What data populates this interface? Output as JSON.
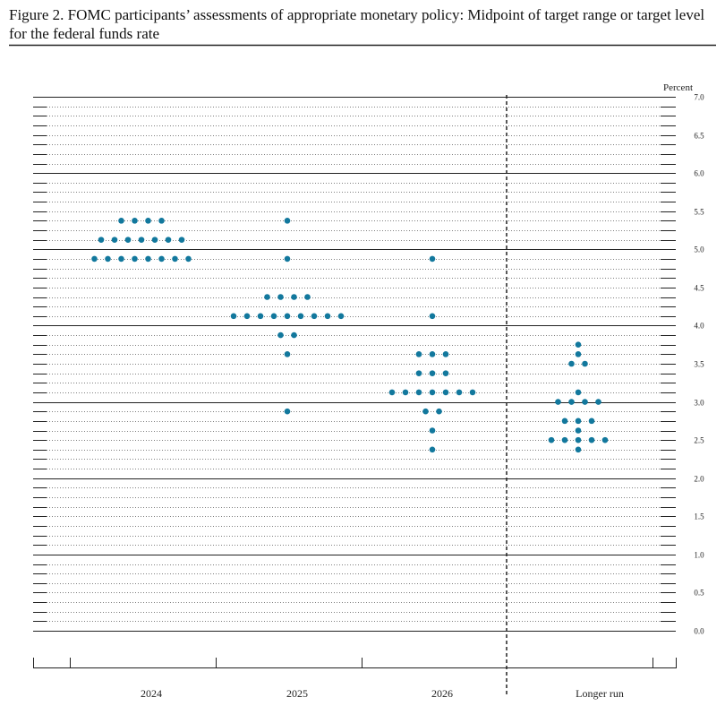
{
  "chart_data": {
    "type": "dot",
    "title": "Figure 2.  FOMC participants’ assessments of appropriate monetary policy: Midpoint of target range or target level for the federal funds rate",
    "y_label": "Percent",
    "color": "#12789d",
    "categories": [
      "2024",
      "2025",
      "2026",
      "Longer run"
    ],
    "dots": [
      [
        {
          "rate": 5.375,
          "count": 4
        },
        {
          "rate": 5.125,
          "count": 7
        },
        {
          "rate": 4.875,
          "count": 8
        }
      ],
      [
        {
          "rate": 5.375,
          "count": 1
        },
        {
          "rate": 4.875,
          "count": 1
        },
        {
          "rate": 4.375,
          "count": 4
        },
        {
          "rate": 4.125,
          "count": 9
        },
        {
          "rate": 3.875,
          "count": 2
        },
        {
          "rate": 3.625,
          "count": 1
        },
        {
          "rate": 2.875,
          "count": 1
        }
      ],
      [
        {
          "rate": 4.875,
          "count": 1
        },
        {
          "rate": 4.125,
          "count": 1
        },
        {
          "rate": 3.625,
          "count": 3
        },
        {
          "rate": 3.375,
          "count": 3
        },
        {
          "rate": 3.125,
          "count": 7
        },
        {
          "rate": 2.875,
          "count": 2
        },
        {
          "rate": 2.625,
          "count": 1
        },
        {
          "rate": 2.375,
          "count": 1
        }
      ],
      [
        {
          "rate": 3.75,
          "count": 1
        },
        {
          "rate": 3.625,
          "count": 1
        },
        {
          "rate": 3.5,
          "count": 2
        },
        {
          "rate": 3.125,
          "count": 1
        },
        {
          "rate": 3.0,
          "count": 4
        },
        {
          "rate": 2.75,
          "count": 3
        },
        {
          "rate": 2.625,
          "count": 1
        },
        {
          "rate": 2.5,
          "count": 5
        },
        {
          "rate": 2.375,
          "count": 1
        }
      ]
    ],
    "ylim": [
      0,
      7
    ],
    "yticks": [
      {
        "value": 0,
        "label": "0.0"
      },
      0.5,
      {
        "value": 1,
        "label": "1.0"
      },
      1.5,
      {
        "value": 2,
        "label": "2.0"
      },
      2.5,
      {
        "value": 3,
        "label": "3.0"
      },
      3.5,
      {
        "value": 4,
        "label": "4.0"
      },
      4.5,
      {
        "value": 5,
        "label": "5.0"
      },
      5.5,
      {
        "value": 6,
        "label": "6.0"
      },
      6.5,
      {
        "value": 7,
        "label": "7.0"
      }
    ]
  }
}
